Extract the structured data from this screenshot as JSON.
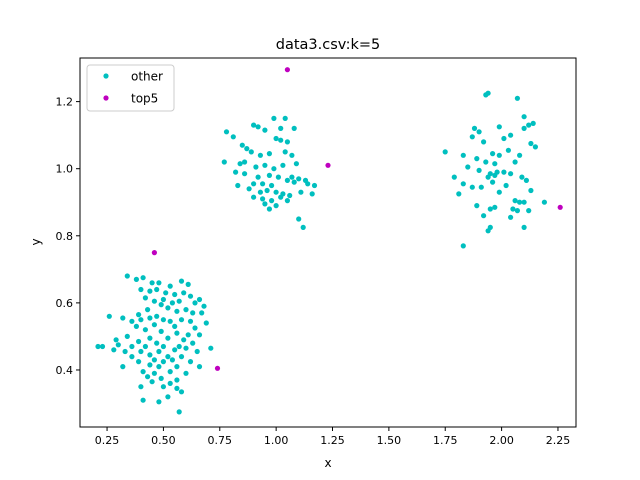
{
  "chart_data": {
    "type": "scatter",
    "title": "data3.csv:k=5",
    "xlabel": "x",
    "ylabel": "y",
    "xlim": [
      0.13,
      2.33
    ],
    "ylim": [
      0.23,
      1.33
    ],
    "xticks": [
      0.25,
      0.5,
      0.75,
      1.0,
      1.25,
      1.5,
      1.75,
      2.0,
      2.25
    ],
    "xtick_labels": [
      "0.25",
      "0.50",
      "0.75",
      "1.00",
      "1.25",
      "1.50",
      "1.75",
      "2.00",
      "2.25"
    ],
    "yticks": [
      0.4,
      0.6,
      0.8,
      1.0,
      1.2
    ],
    "ytick_labels": [
      "0.4",
      "0.6",
      "0.8",
      "1.0",
      "1.2"
    ],
    "grid": false,
    "legend_position": "top-left",
    "series": [
      {
        "name": "other",
        "color": "#00bfbf",
        "points": [
          [
            0.34,
            0.68
          ],
          [
            0.38,
            0.67
          ],
          [
            0.41,
            0.675
          ],
          [
            0.45,
            0.66
          ],
          [
            0.48,
            0.66
          ],
          [
            0.53,
            0.65
          ],
          [
            0.58,
            0.665
          ],
          [
            0.61,
            0.655
          ],
          [
            0.4,
            0.64
          ],
          [
            0.44,
            0.635
          ],
          [
            0.47,
            0.64
          ],
          [
            0.51,
            0.63
          ],
          [
            0.55,
            0.625
          ],
          [
            0.59,
            0.63
          ],
          [
            0.62,
            0.62
          ],
          [
            0.66,
            0.61
          ],
          [
            0.42,
            0.615
          ],
          [
            0.46,
            0.605
          ],
          [
            0.5,
            0.61
          ],
          [
            0.54,
            0.6
          ],
          [
            0.57,
            0.605
          ],
          [
            0.64,
            0.6
          ],
          [
            0.68,
            0.59
          ],
          [
            0.49,
            0.595
          ],
          [
            0.52,
            0.585
          ],
          [
            0.43,
            0.58
          ],
          [
            0.56,
            0.575
          ],
          [
            0.6,
            0.58
          ],
          [
            0.63,
            0.57
          ],
          [
            0.67,
            0.57
          ],
          [
            0.39,
            0.565
          ],
          [
            0.47,
            0.56
          ],
          [
            0.26,
            0.56
          ],
          [
            0.32,
            0.555
          ],
          [
            0.36,
            0.545
          ],
          [
            0.4,
            0.55
          ],
          [
            0.44,
            0.555
          ],
          [
            0.5,
            0.55
          ],
          [
            0.53,
            0.545
          ],
          [
            0.58,
            0.55
          ],
          [
            0.62,
            0.545
          ],
          [
            0.69,
            0.54
          ],
          [
            0.38,
            0.53
          ],
          [
            0.46,
            0.535
          ],
          [
            0.55,
            0.53
          ],
          [
            0.64,
            0.525
          ],
          [
            0.42,
            0.52
          ],
          [
            0.49,
            0.515
          ],
          [
            0.56,
            0.51
          ],
          [
            0.61,
            0.505
          ],
          [
            0.66,
            0.505
          ],
          [
            0.34,
            0.5
          ],
          [
            0.44,
            0.495
          ],
          [
            0.52,
            0.495
          ],
          [
            0.59,
            0.49
          ],
          [
            0.63,
            0.48
          ],
          [
            0.29,
            0.49
          ],
          [
            0.39,
            0.485
          ],
          [
            0.47,
            0.48
          ],
          [
            0.3,
            0.475
          ],
          [
            0.36,
            0.47
          ],
          [
            0.42,
            0.47
          ],
          [
            0.5,
            0.47
          ],
          [
            0.57,
            0.47
          ],
          [
            0.6,
            0.465
          ],
          [
            0.71,
            0.465
          ],
          [
            0.21,
            0.47
          ],
          [
            0.23,
            0.47
          ],
          [
            0.28,
            0.46
          ],
          [
            0.33,
            0.455
          ],
          [
            0.4,
            0.455
          ],
          [
            0.48,
            0.455
          ],
          [
            0.55,
            0.46
          ],
          [
            0.65,
            0.455
          ],
          [
            0.36,
            0.44
          ],
          [
            0.44,
            0.445
          ],
          [
            0.52,
            0.44
          ],
          [
            0.58,
            0.44
          ],
          [
            0.46,
            0.43
          ],
          [
            0.54,
            0.43
          ],
          [
            0.39,
            0.425
          ],
          [
            0.5,
            0.425
          ],
          [
            0.62,
            0.425
          ],
          [
            0.32,
            0.41
          ],
          [
            0.44,
            0.415
          ],
          [
            0.48,
            0.41
          ],
          [
            0.56,
            0.41
          ],
          [
            0.66,
            0.41
          ],
          [
            0.41,
            0.395
          ],
          [
            0.46,
            0.39
          ],
          [
            0.53,
            0.395
          ],
          [
            0.6,
            0.39
          ],
          [
            0.43,
            0.38
          ],
          [
            0.49,
            0.375
          ],
          [
            0.56,
            0.37
          ],
          [
            0.45,
            0.365
          ],
          [
            0.53,
            0.36
          ],
          [
            0.4,
            0.35
          ],
          [
            0.5,
            0.35
          ],
          [
            0.56,
            0.345
          ],
          [
            0.58,
            0.335
          ],
          [
            0.52,
            0.32
          ],
          [
            0.41,
            0.31
          ],
          [
            0.48,
            0.305
          ],
          [
            0.57,
            0.275
          ]
        ]
      },
      {
        "name": "top5",
        "color": "#bf00bf",
        "points": [
          [
            1.05,
            1.295
          ],
          [
            1.23,
            1.01
          ],
          [
            0.46,
            0.75
          ],
          [
            0.74,
            0.405
          ],
          [
            2.26,
            0.885
          ]
        ]
      },
      {
        "name": "",
        "color": "#00bfbf",
        "points": [
          [
            0.78,
            1.11
          ],
          [
            0.81,
            1.095
          ],
          [
            0.85,
            1.07
          ],
          [
            0.9,
            1.13
          ],
          [
            0.92,
            1.125
          ],
          [
            0.95,
            1.115
          ],
          [
            0.99,
            1.15
          ],
          [
            1.02,
            1.12
          ],
          [
            1.04,
            1.15
          ],
          [
            1.08,
            1.12
          ],
          [
            0.87,
            1.06
          ],
          [
            0.89,
            1.05
          ],
          [
            0.93,
            1.04
          ],
          [
            0.97,
            1.045
          ],
          [
            1.0,
            1.09
          ],
          [
            1.02,
            1.085
          ],
          [
            1.05,
            1.08
          ],
          [
            1.04,
            1.05
          ],
          [
            1.07,
            1.04
          ],
          [
            0.77,
            1.02
          ],
          [
            0.84,
            1.015
          ],
          [
            0.86,
            1.02
          ],
          [
            0.91,
            1.005
          ],
          [
            0.95,
            1.01
          ],
          [
            0.99,
            1.0
          ],
          [
            1.03,
            1.01
          ],
          [
            1.09,
            1.015
          ],
          [
            0.82,
            0.99
          ],
          [
            0.86,
            0.985
          ],
          [
            0.92,
            0.975
          ],
          [
            0.97,
            0.98
          ],
          [
            1.01,
            0.975
          ],
          [
            1.07,
            0.975
          ],
          [
            1.1,
            0.97
          ],
          [
            1.13,
            0.965
          ],
          [
            0.9,
            0.955
          ],
          [
            0.94,
            0.955
          ],
          [
            0.98,
            0.95
          ],
          [
            1.05,
            0.965
          ],
          [
            1.08,
            0.96
          ],
          [
            1.14,
            0.955
          ],
          [
            1.17,
            0.95
          ],
          [
            0.83,
            0.95
          ],
          [
            0.88,
            0.94
          ],
          [
            0.93,
            0.93
          ],
          [
            0.96,
            0.935
          ],
          [
            1.0,
            0.93
          ],
          [
            1.03,
            0.925
          ],
          [
            1.11,
            0.93
          ],
          [
            1.16,
            0.925
          ],
          [
            0.9,
            0.915
          ],
          [
            0.94,
            0.91
          ],
          [
            0.98,
            0.905
          ],
          [
            1.02,
            0.915
          ],
          [
            1.06,
            0.92
          ],
          [
            0.95,
            0.895
          ],
          [
            1.0,
            0.89
          ],
          [
            1.05,
            0.905
          ],
          [
            0.97,
            0.88
          ],
          [
            1.1,
            0.85
          ],
          [
            1.12,
            0.825
          ]
        ]
      },
      {
        "name": "",
        "color": "#00bfbf",
        "points": [
          [
            1.93,
            1.22
          ],
          [
            1.94,
            1.225
          ],
          [
            2.07,
            1.21
          ],
          [
            2.1,
            1.155
          ],
          [
            1.88,
            1.12
          ],
          [
            1.9,
            1.11
          ],
          [
            1.99,
            1.125
          ],
          [
            2.12,
            1.13
          ],
          [
            2.14,
            1.135
          ],
          [
            2.1,
            1.12
          ],
          [
            1.87,
            1.095
          ],
          [
            1.92,
            1.08
          ],
          [
            2.01,
            1.09
          ],
          [
            2.04,
            1.1
          ],
          [
            2.13,
            1.075
          ],
          [
            2.15,
            1.065
          ],
          [
            1.75,
            1.05
          ],
          [
            1.83,
            1.04
          ],
          [
            1.96,
            1.045
          ],
          [
            1.99,
            1.04
          ],
          [
            2.03,
            1.055
          ],
          [
            2.08,
            1.04
          ],
          [
            1.89,
            1.03
          ],
          [
            1.93,
            1.02
          ],
          [
            1.97,
            1.015
          ],
          [
            2.06,
            1.02
          ],
          [
            1.85,
            1.005
          ],
          [
            1.9,
            0.995
          ],
          [
            1.95,
            0.985
          ],
          [
            1.97,
            0.98
          ],
          [
            1.98,
            0.99
          ],
          [
            2.01,
            0.99
          ],
          [
            2.04,
            0.985
          ],
          [
            2.09,
            0.975
          ],
          [
            2.11,
            0.965
          ],
          [
            1.79,
            0.975
          ],
          [
            1.94,
            0.975
          ],
          [
            1.96,
            0.96
          ],
          [
            1.83,
            0.955
          ],
          [
            1.87,
            0.945
          ],
          [
            1.91,
            0.945
          ],
          [
            2.02,
            0.95
          ],
          [
            2.13,
            0.935
          ],
          [
            1.81,
            0.925
          ],
          [
            1.99,
            0.93
          ],
          [
            2.06,
            0.905
          ],
          [
            2.08,
            0.9
          ],
          [
            2.1,
            0.9
          ],
          [
            2.19,
            0.9
          ],
          [
            1.89,
            0.89
          ],
          [
            1.95,
            0.88
          ],
          [
            1.97,
            0.885
          ],
          [
            2.05,
            0.88
          ],
          [
            2.07,
            0.875
          ],
          [
            2.12,
            0.875
          ],
          [
            2.04,
            0.855
          ],
          [
            1.92,
            0.86
          ],
          [
            1.95,
            0.825
          ],
          [
            1.94,
            0.815
          ],
          [
            2.1,
            0.825
          ],
          [
            1.83,
            0.77
          ]
        ]
      }
    ]
  }
}
